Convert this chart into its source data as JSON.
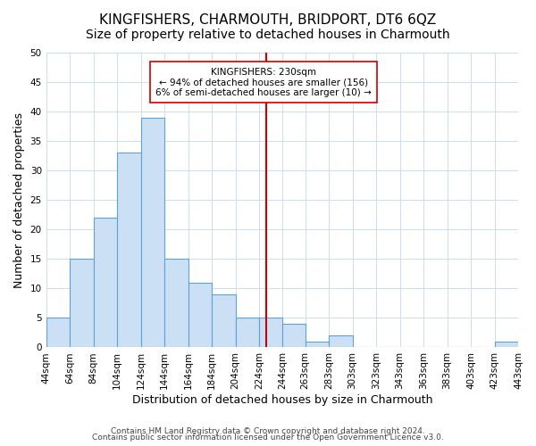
{
  "title": "KINGFISHERS, CHARMOUTH, BRIDPORT, DT6 6QZ",
  "subtitle": "Size of property relative to detached houses in Charmouth",
  "xlabel": "Distribution of detached houses by size in Charmouth",
  "ylabel": "Number of detached properties",
  "bar_color": "#cce0f5",
  "bar_edge_color": "#5ba3d9",
  "vline_x": 230,
  "vline_color": "#cc0000",
  "annotation_title": "KINGFISHERS: 230sqm",
  "annotation_line1": "← 94% of detached houses are smaller (156)",
  "annotation_line2": "6% of semi-detached houses are larger (10) →",
  "annotation_box_color": "#ffffff",
  "annotation_box_edge": "#cc0000",
  "bins_left": [
    44,
    64,
    84,
    104,
    124,
    144,
    164,
    184,
    204,
    224,
    244,
    263,
    283,
    303,
    323,
    343,
    363,
    383,
    403,
    423
  ],
  "bins_right": [
    64,
    84,
    104,
    124,
    144,
    164,
    184,
    204,
    224,
    244,
    263,
    283,
    303,
    323,
    343,
    363,
    383,
    403,
    423,
    443
  ],
  "bar_heights": [
    5,
    15,
    22,
    33,
    39,
    15,
    11,
    9,
    5,
    5,
    4,
    1,
    2,
    0,
    0,
    0,
    0,
    0,
    0,
    1
  ],
  "ylim": [
    0,
    50
  ],
  "yticks": [
    0,
    5,
    10,
    15,
    20,
    25,
    30,
    35,
    40,
    45,
    50
  ],
  "xtick_labels": [
    "44sqm",
    "64sqm",
    "84sqm",
    "104sqm",
    "124sqm",
    "144sqm",
    "164sqm",
    "184sqm",
    "204sqm",
    "224sqm",
    "244sqm",
    "263sqm",
    "283sqm",
    "303sqm",
    "323sqm",
    "343sqm",
    "363sqm",
    "383sqm",
    "403sqm",
    "423sqm",
    "443sqm"
  ],
  "footer1": "Contains HM Land Registry data © Crown copyright and database right 2024.",
  "footer2": "Contains public sector information licensed under the Open Government Licence v3.0.",
  "bg_color": "#ffffff",
  "grid_color": "#ccddee",
  "title_fontsize": 11,
  "subtitle_fontsize": 10,
  "axis_label_fontsize": 9,
  "tick_fontsize": 7.5,
  "footer_fontsize": 6.5
}
